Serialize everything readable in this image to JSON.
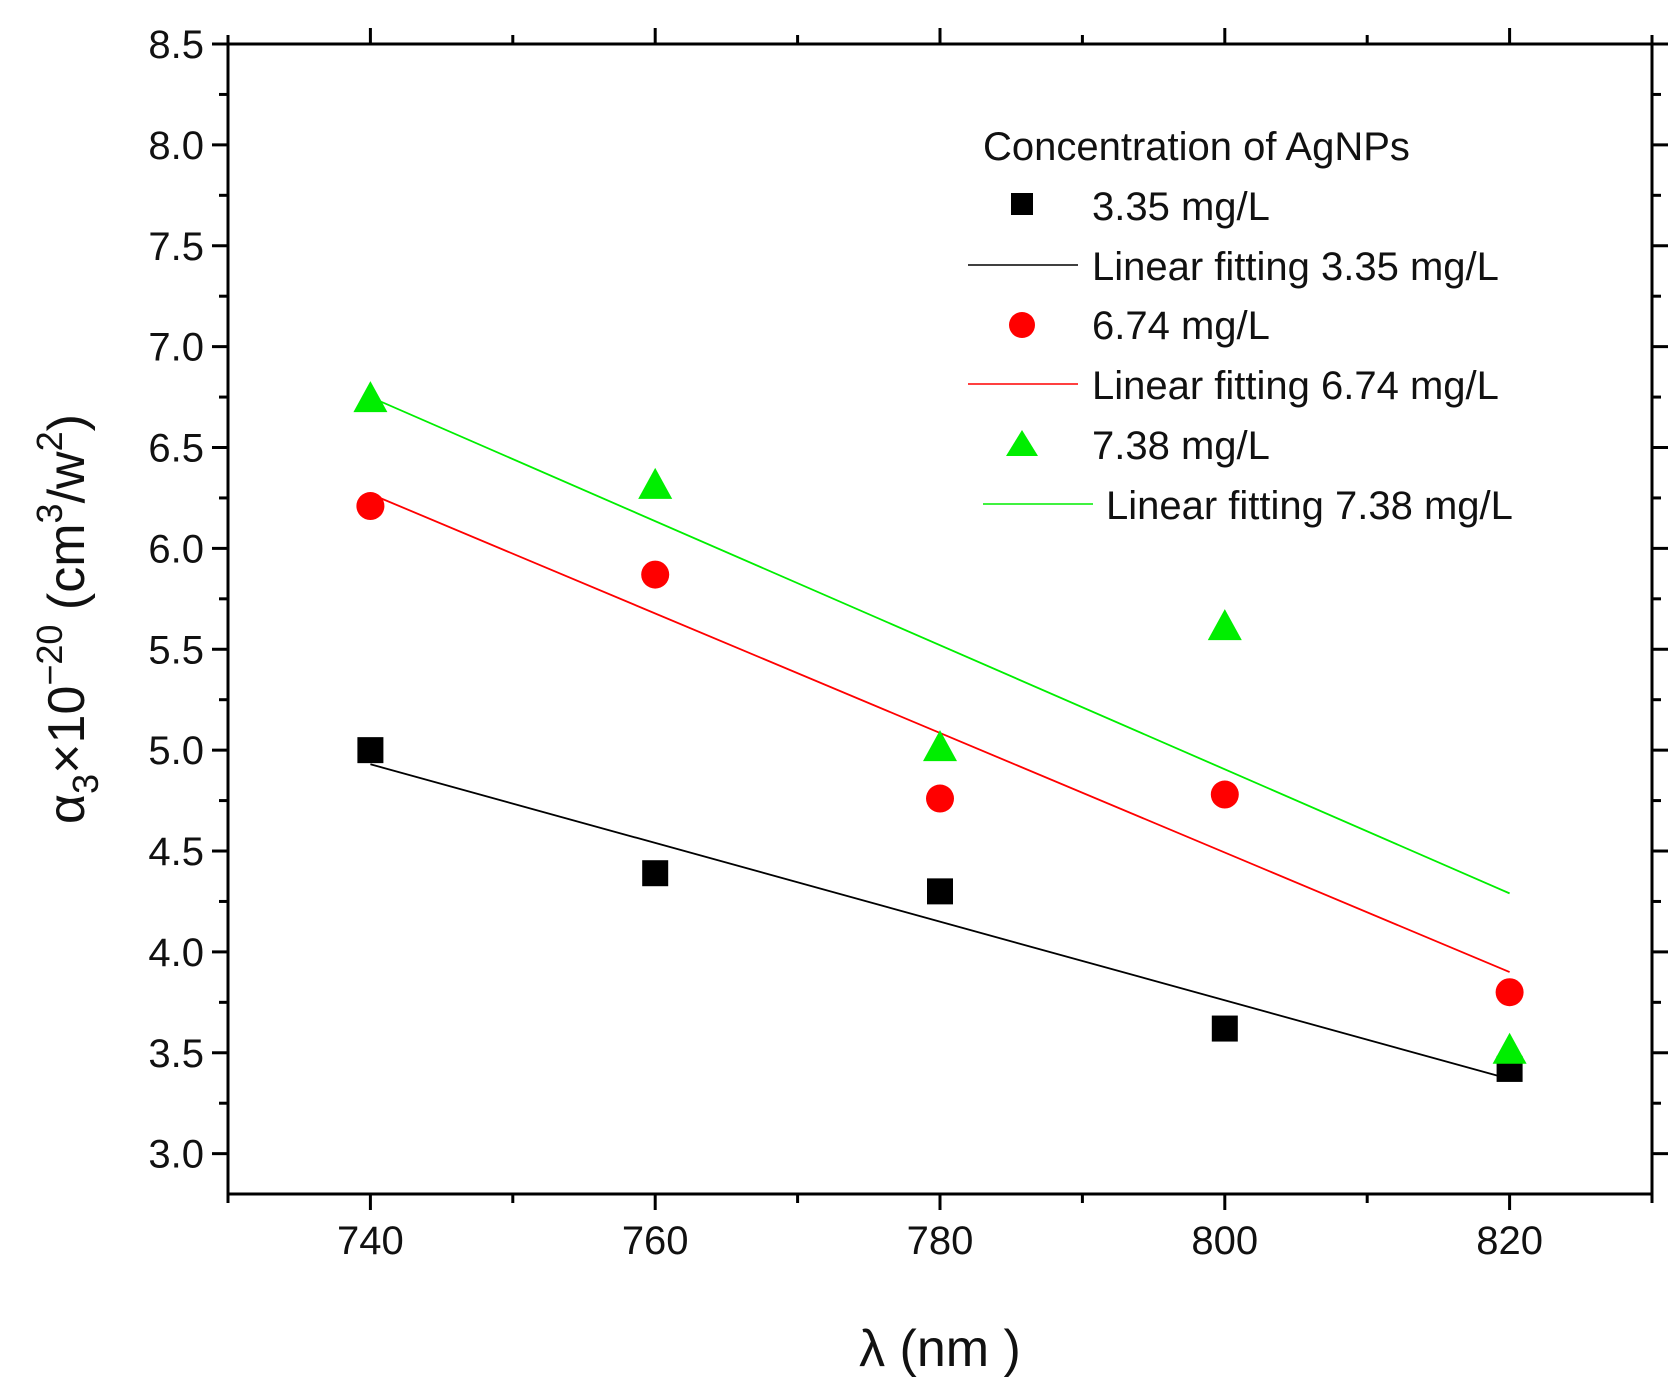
{
  "chart_data": {
    "type": "scatter",
    "x_values": [
      740,
      760,
      780,
      800,
      820
    ],
    "xlim": [
      730,
      830
    ],
    "ylim": [
      2.8,
      8.5
    ],
    "x_ticks": [
      "740",
      "760",
      "780",
      "800",
      "820"
    ],
    "y_ticks": [
      "3.0",
      "3.5",
      "4.0",
      "4.5",
      "5.0",
      "5.5",
      "6.0",
      "6.5",
      "7.0",
      "7.5",
      "8.0",
      "8.5"
    ],
    "x_tick_values": [
      740,
      760,
      780,
      800,
      820
    ],
    "y_tick_values": [
      3.0,
      3.5,
      4.0,
      4.5,
      5.0,
      5.5,
      6.0,
      6.5,
      7.0,
      7.5,
      8.0,
      8.5
    ],
    "xlabel": "λ (nm )",
    "ylabel": {
      "base": "α",
      "base_sub": "3",
      "times": "×10",
      "exp": "−20",
      "unit_open": " (cm",
      "unit_exp1": "3",
      "unit_mid": "/w",
      "unit_exp2": "2",
      "unit_close": ")"
    },
    "legend_title": "Concentration of AgNPs",
    "series": [
      {
        "name": "3.35 mg/L",
        "marker": "square",
        "color": "#000000",
        "values": [
          5.0,
          4.39,
          4.3,
          3.62,
          3.42
        ],
        "fit_name": "Linear fitting 3.35 mg/L",
        "fit": [
          4.93,
          3.37
        ]
      },
      {
        "name": "6.74 mg/L",
        "marker": "circle",
        "color": "#ff0000",
        "values": [
          6.21,
          5.87,
          4.76,
          4.78,
          3.8
        ],
        "fit_name": "Linear fitting 6.74 mg/L",
        "fit": [
          6.27,
          3.9
        ]
      },
      {
        "name": "7.38 mg/L",
        "marker": "triangle",
        "color": "#00ee00",
        "values": [
          6.74,
          6.31,
          5.01,
          5.61,
          3.51
        ],
        "fit_name": "Linear fitting 7.38 mg/L",
        "fit": [
          6.75,
          4.29
        ]
      }
    ]
  }
}
